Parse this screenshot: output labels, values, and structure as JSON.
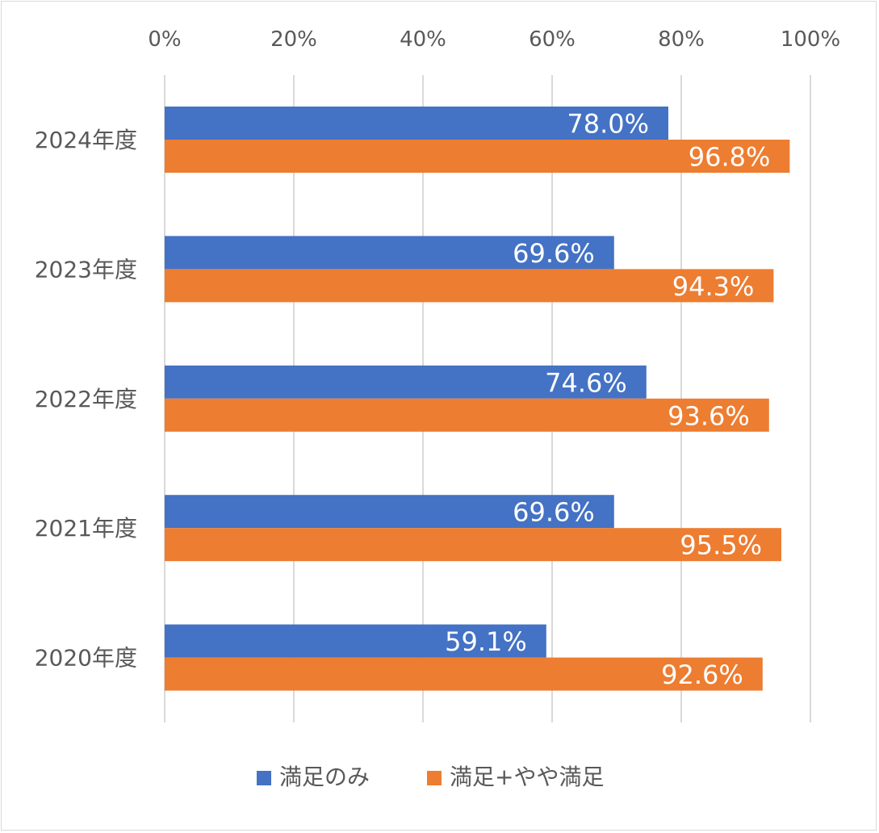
{
  "chart_data": {
    "type": "bar",
    "orientation": "horizontal",
    "categories": [
      "2024年度",
      "2023年度",
      "2022年度",
      "2021年度",
      "2020年度"
    ],
    "series": [
      {
        "name": "満足のみ",
        "color": "#4472C4",
        "values": [
          78.0,
          69.6,
          74.6,
          69.6,
          59.1
        ],
        "labels": [
          "78.0%",
          "69.6%",
          "74.6%",
          "69.6%",
          "59.1%"
        ]
      },
      {
        "name": "満足+やや満足",
        "color": "#ED7D31",
        "values": [
          96.8,
          94.3,
          93.6,
          95.5,
          92.6
        ],
        "labels": [
          "96.8%",
          "94.3%",
          "93.6%",
          "95.5%",
          "92.6%"
        ]
      }
    ],
    "x_ticks": [
      "0%",
      "20%",
      "40%",
      "60%",
      "80%",
      "100%"
    ],
    "xlim": [
      0,
      100
    ],
    "grid": true,
    "axis_position": "top",
    "legend": "bottom"
  }
}
